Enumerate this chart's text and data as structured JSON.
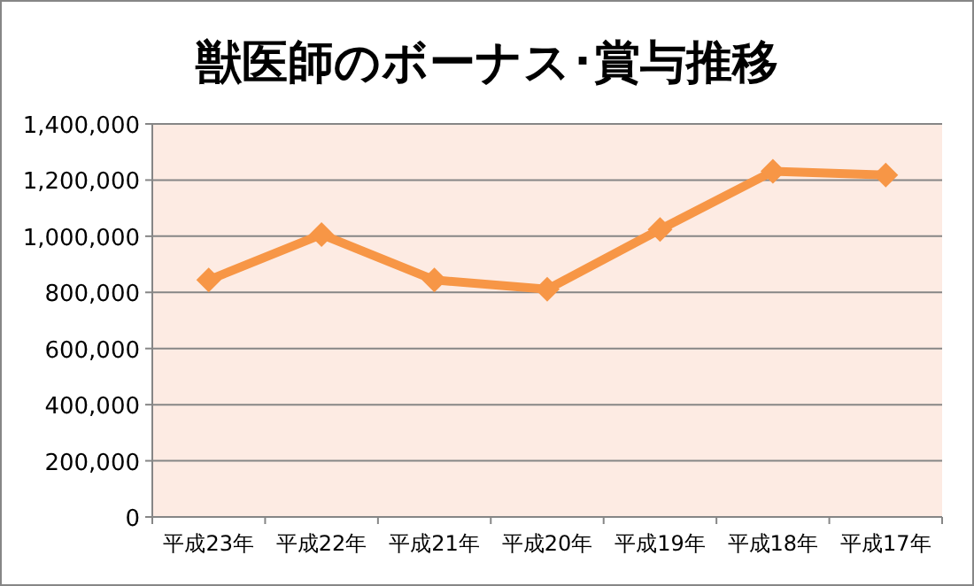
{
  "chart_data": {
    "type": "line",
    "title": "獣医師のボーナス･賞与推移",
    "categories": [
      "平成23年",
      "平成22年",
      "平成21年",
      "平成20年",
      "平成19年",
      "平成18年",
      "平成17年"
    ],
    "series": [
      {
        "color": "#f79646",
        "values": [
          844000,
          1006000,
          844000,
          811000,
          1024000,
          1231000,
          1218000
        ]
      }
    ],
    "ylim": [
      0,
      1400000
    ],
    "yticks": [
      {
        "value": 0,
        "label": "0"
      },
      {
        "value": 200000,
        "label": "200,000"
      },
      {
        "value": 400000,
        "label": "400,000"
      },
      {
        "value": 600000,
        "label": "600,000"
      },
      {
        "value": 800000,
        "label": "800,000"
      },
      {
        "value": 1000000,
        "label": "1,000,000"
      },
      {
        "value": 1200000,
        "label": "1,200,000"
      },
      {
        "value": 1400000,
        "label": "1,400,000"
      }
    ],
    "grid": "y",
    "marker": "diamond"
  }
}
